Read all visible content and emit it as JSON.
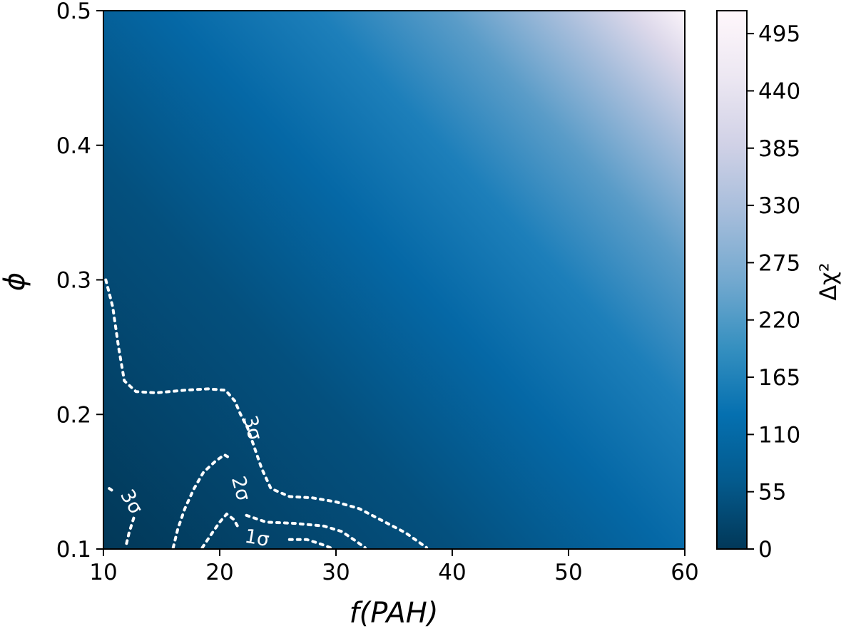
{
  "chart_data": {
    "type": "heatmap",
    "xlabel": "f(PAH)",
    "ylabel": "ϕ",
    "xlim": [
      10,
      60
    ],
    "ylim": [
      0.1,
      0.5
    ],
    "x_ticks": [
      "10",
      "20",
      "30",
      "40",
      "50",
      "60"
    ],
    "y_ticks": [
      "0.1",
      "0.2",
      "0.3",
      "0.4",
      "0.5"
    ],
    "colorbar": {
      "label": "Δχ²",
      "range": [
        0,
        517
      ],
      "ticks": [
        "0",
        "55",
        "110",
        "165",
        "220",
        "275",
        "330",
        "385",
        "440",
        "495"
      ],
      "tick_values": [
        0,
        55,
        110,
        165,
        220,
        275,
        330,
        385,
        440,
        495
      ],
      "colormap": [
        "#023858",
        "#045a8d",
        "#0570b0",
        "#3690c0",
        "#74a9cf",
        "#a6bddb",
        "#d0d1e6",
        "#ece7f2",
        "#fff7fb"
      ]
    },
    "field_approx": {
      "description_values": "Δχ² rises from ~0 at bottom-left to ~517 at top-right",
      "corners": {
        "x10_y0.1": 0,
        "x60_y0.1": 150,
        "x10_y0.5": 60,
        "x60_y0.5": 517
      }
    },
    "contours": [
      {
        "level_label": "3σ",
        "color": "#ffffff",
        "points": [
          [
            10.2,
            0.3
          ],
          [
            10.8,
            0.28
          ],
          [
            11.3,
            0.25
          ],
          [
            11.8,
            0.225
          ],
          [
            12.8,
            0.217
          ],
          [
            14.5,
            0.216
          ],
          [
            17,
            0.218
          ],
          [
            19,
            0.219
          ],
          [
            20.5,
            0.218
          ],
          [
            21.3,
            0.21
          ],
          [
            21.8,
            0.2
          ],
          [
            22.4,
            0.19
          ],
          [
            23,
            0.175
          ],
          [
            23.6,
            0.16
          ],
          [
            24.4,
            0.145
          ],
          [
            26,
            0.139
          ],
          [
            28,
            0.138
          ],
          [
            30,
            0.135
          ],
          [
            32,
            0.13
          ],
          [
            34,
            0.121
          ],
          [
            36,
            0.112
          ],
          [
            37.8,
            0.101
          ]
        ]
      },
      {
        "level_label": "3σ",
        "color": "#ffffff",
        "points": [
          [
            10.5,
            0.145
          ],
          [
            11.0,
            0.142
          ]
        ]
      },
      {
        "level_label": "3σ",
        "color": "#ffffff",
        "points": [
          [
            12.6,
            0.123
          ],
          [
            12.2,
            0.112
          ],
          [
            11.9,
            0.101
          ]
        ]
      },
      {
        "level_label": "2σ",
        "color": "#ffffff",
        "points": [
          [
            16.0,
            0.101
          ],
          [
            16.4,
            0.115
          ],
          [
            17.0,
            0.13
          ],
          [
            17.8,
            0.145
          ],
          [
            18.6,
            0.157
          ],
          [
            19.6,
            0.165
          ],
          [
            20.4,
            0.17
          ],
          [
            20.8,
            0.168
          ]
        ]
      },
      {
        "level_label": "2σ",
        "color": "#ffffff",
        "points": [
          [
            22.3,
            0.125
          ],
          [
            24,
            0.12
          ],
          [
            26.5,
            0.119
          ],
          [
            29,
            0.117
          ],
          [
            30.5,
            0.113
          ],
          [
            31.7,
            0.106
          ],
          [
            32.5,
            0.101
          ]
        ]
      },
      {
        "level_label": "1σ",
        "color": "#ffffff",
        "points": [
          [
            18.5,
            0.101
          ],
          [
            19.2,
            0.11
          ],
          [
            20.0,
            0.12
          ],
          [
            20.6,
            0.126
          ],
          [
            21.2,
            0.122
          ],
          [
            21.6,
            0.116
          ]
        ]
      },
      {
        "level_label": "1σ",
        "color": "#ffffff",
        "points": [
          [
            26.0,
            0.107
          ],
          [
            27.5,
            0.107
          ],
          [
            28.6,
            0.104
          ],
          [
            29.5,
            0.101
          ]
        ]
      }
    ],
    "contour_labels": [
      {
        "text": "3σ",
        "x": 22.8,
        "y": 0.19,
        "rotation": 75
      },
      {
        "text": "3σ",
        "x": 12.4,
        "y": 0.135,
        "rotation": 60
      },
      {
        "text": "2σ",
        "x": 21.8,
        "y": 0.145,
        "rotation": 75
      },
      {
        "text": "1σ",
        "x": 23.2,
        "y": 0.108,
        "rotation": 10
      }
    ]
  }
}
